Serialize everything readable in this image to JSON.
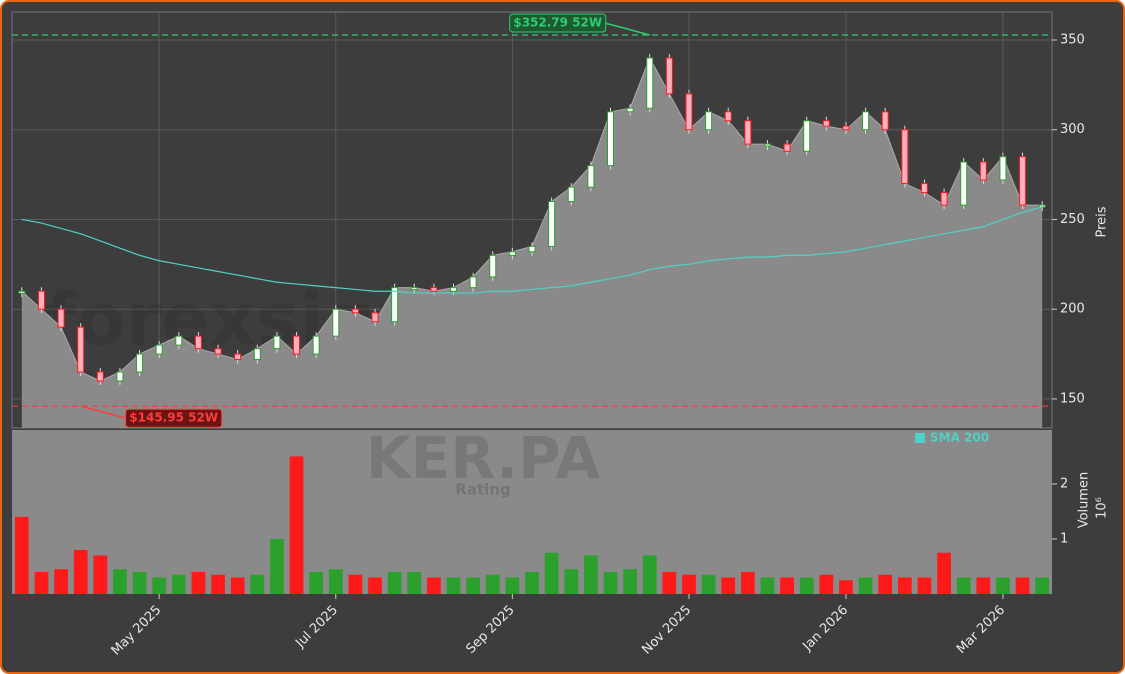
{
  "chart_data": {
    "type": "candlestick",
    "categories": [
      null,
      null,
      null,
      null,
      null,
      null,
      null,
      "May 2025",
      null,
      null,
      null,
      null,
      null,
      null,
      null,
      null,
      "Jul 2025",
      null,
      null,
      null,
      null,
      null,
      null,
      null,
      null,
      "Sep 2025",
      null,
      null,
      null,
      null,
      null,
      null,
      null,
      null,
      "Nov 2025",
      null,
      null,
      null,
      null,
      null,
      null,
      null,
      "Jan 2026",
      null,
      null,
      null,
      null,
      null,
      null,
      null,
      "Mar 2026",
      null,
      null
    ],
    "close": [
      210,
      200,
      190,
      165,
      160,
      165,
      175,
      180,
      185,
      178,
      175,
      172,
      178,
      185,
      175,
      185,
      200,
      198,
      193,
      212,
      212,
      210,
      212,
      218,
      230,
      232,
      235,
      260,
      268,
      280,
      310,
      312,
      340,
      320,
      300,
      310,
      305,
      292,
      292,
      288,
      305,
      302,
      300,
      310,
      300,
      270,
      265,
      258,
      282,
      272,
      285,
      258,
      258
    ],
    "sma": {
      "name": "SMA 200",
      "color": "#4fd1c5",
      "values": [
        250,
        248,
        245,
        242,
        238,
        234,
        230,
        227,
        225,
        223,
        221,
        219,
        217,
        215,
        214,
        213,
        212,
        211,
        210,
        210,
        209,
        209,
        209,
        209,
        210,
        210,
        211,
        212,
        213,
        215,
        217,
        219,
        222,
        224,
        225,
        227,
        228,
        229,
        229,
        230,
        230,
        231,
        232,
        234,
        236,
        238,
        240,
        242,
        244,
        246,
        250,
        254,
        257
      ]
    },
    "volume": {
      "ylabel": "Volumen",
      "unit_label": "10⁶",
      "ylim": [
        0,
        2.98
      ],
      "yticks": [
        1,
        2
      ],
      "values": [
        1.4,
        0.4,
        0.45,
        0.8,
        0.7,
        0.45,
        0.4,
        0.3,
        0.35,
        0.4,
        0.35,
        0.3,
        0.35,
        1.0,
        2.5,
        0.4,
        0.45,
        0.35,
        0.3,
        0.4,
        0.4,
        0.3,
        0.3,
        0.3,
        0.35,
        0.3,
        0.4,
        0.75,
        0.45,
        0.7,
        0.4,
        0.45,
        0.7,
        0.4,
        0.35,
        0.35,
        0.3,
        0.4,
        0.3,
        0.3,
        0.3,
        0.35,
        0.25,
        0.3,
        0.35,
        0.3,
        0.3,
        0.75,
        0.3,
        0.3,
        0.3,
        0.3,
        0.3
      ]
    },
    "ylabel": "Preis",
    "ylim": [
      133.8,
      365.6
    ],
    "yticks": [
      150,
      200,
      250,
      300,
      350
    ],
    "grid": true,
    "up_color": "#2ca02c",
    "down_color": "#ff1a1a",
    "area_color": "#8a8a8a",
    "annotations": [
      {
        "label": "$352.79 52W",
        "value": 352.79,
        "color": "#2ecc71",
        "index": 32
      },
      {
        "label": "$145.95 52W",
        "value": 145.95,
        "color": "#ff3b3b",
        "index": 3
      }
    ],
    "watermarks": [
      "forexsignale.trade",
      "KER.PA",
      "Rating"
    ]
  }
}
